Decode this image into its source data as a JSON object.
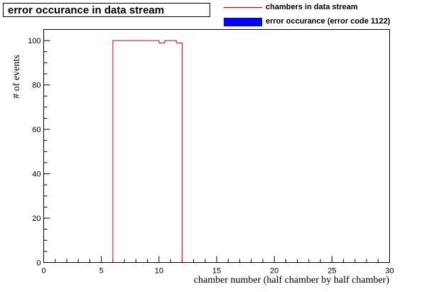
{
  "chart_data": {
    "type": "histogram",
    "title": "error occurance in data stream",
    "xlabel": "chamber number (half chamber by half chamber)",
    "ylabel": "# of events",
    "xlim": [
      0,
      30
    ],
    "ylim": [
      0,
      105
    ],
    "x_ticks": [
      0,
      5,
      10,
      15,
      20,
      25,
      30
    ],
    "y_ticks": [
      0,
      20,
      40,
      60,
      80,
      100
    ],
    "bin_width": 0.5,
    "legend_position": "top-right",
    "grid": false,
    "series": [
      {
        "name": "chambers in data stream",
        "color": "#cc0000",
        "style": "step",
        "bins": [
          {
            "x": 6.0,
            "value": 100
          },
          {
            "x": 6.5,
            "value": 100
          },
          {
            "x": 7.0,
            "value": 100
          },
          {
            "x": 7.5,
            "value": 100
          },
          {
            "x": 8.0,
            "value": 100
          },
          {
            "x": 8.5,
            "value": 100
          },
          {
            "x": 9.0,
            "value": 100
          },
          {
            "x": 9.5,
            "value": 100
          },
          {
            "x": 10.0,
            "value": 99
          },
          {
            "x": 10.5,
            "value": 100
          },
          {
            "x": 11.0,
            "value": 100
          },
          {
            "x": 11.5,
            "value": 99
          }
        ]
      },
      {
        "name": "error occurance (error code 1122)",
        "color": "#0000ff",
        "style": "fill",
        "bins": []
      }
    ]
  }
}
